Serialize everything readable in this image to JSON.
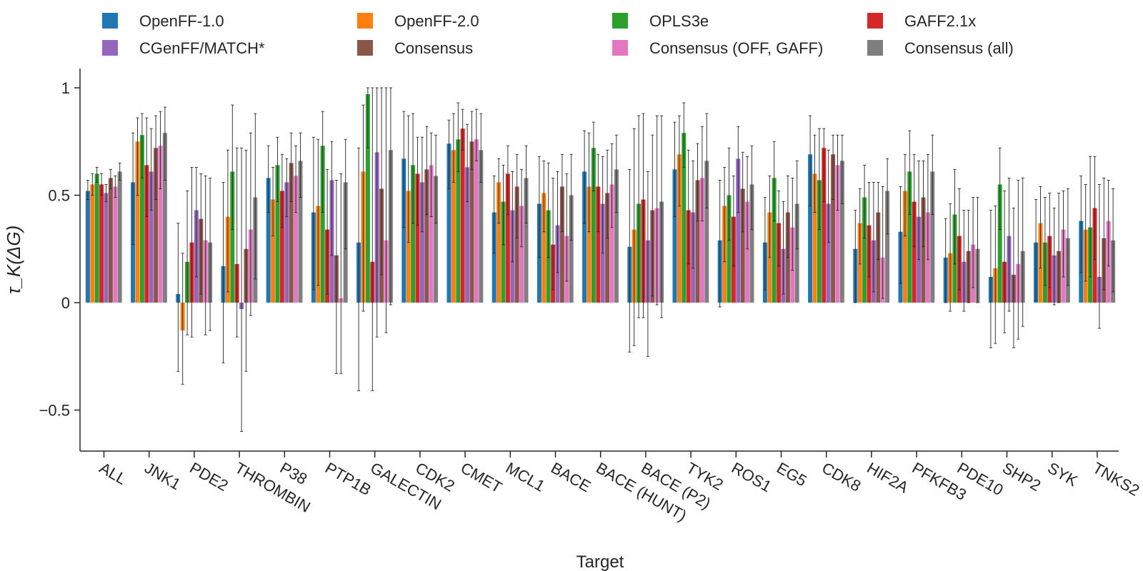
{
  "chart_data": {
    "type": "bar",
    "xlabel": "Target",
    "ylabel": "τ_K(ΔG)",
    "ylim": [
      -0.69,
      1.08
    ],
    "yticks": [
      -0.5,
      0,
      0.5,
      1
    ],
    "ytick_labels": [
      "−0.5",
      "0",
      "0.5",
      "1"
    ],
    "legend_position": "top",
    "error_bars": true,
    "categories": [
      "ALL",
      "JNK1",
      "PDE2",
      "THROMBIN",
      "P38",
      "PTP1B",
      "GALECTIN",
      "CDK2",
      "CMET",
      "MCL1",
      "BACE",
      "BACE (HUNT)",
      "BACE (P2)",
      "TYK2",
      "ROS1",
      "EG5",
      "CDK8",
      "HIF2A",
      "PFKFB3",
      "PDE10",
      "SHP2",
      "SYK",
      "TNKS2"
    ],
    "series": [
      {
        "name": "OpenFF-1.0",
        "color": "#1f77b4",
        "values": [
          0.52,
          0.56,
          0.04,
          0.17,
          0.58,
          0.42,
          0.28,
          0.67,
          0.74,
          0.42,
          0.46,
          0.61,
          0.26,
          0.62,
          0.29,
          0.28,
          0.69,
          0.25,
          0.33,
          0.21,
          0.12,
          0.28,
          0.38
        ],
        "err_low": [
          0.48,
          0.27,
          -0.32,
          -0.28,
          0.42,
          0.06,
          -0.41,
          0.35,
          0.53,
          0.23,
          0.21,
          0.37,
          -0.23,
          0.4,
          -0.02,
          0.06,
          0.45,
          0.0,
          0.09,
          0.0,
          -0.21,
          0.01,
          0.14
        ],
        "err_high": [
          0.57,
          0.79,
          0.37,
          0.56,
          0.73,
          0.77,
          0.72,
          0.89,
          0.85,
          0.59,
          0.68,
          0.8,
          0.62,
          0.84,
          0.57,
          0.49,
          0.87,
          0.43,
          0.54,
          0.39,
          0.43,
          0.48,
          0.59
        ]
      },
      {
        "name": "OpenFF-2.0",
        "color": "#ff7f0e",
        "values": [
          0.55,
          0.75,
          -0.13,
          0.4,
          0.48,
          0.45,
          0.61,
          0.52,
          0.71,
          0.56,
          0.51,
          0.54,
          0.34,
          0.69,
          0.45,
          0.42,
          0.6,
          0.37,
          0.52,
          0.23,
          0.16,
          0.37,
          0.34
        ],
        "err_low": [
          0.5,
          0.5,
          -0.38,
          0.05,
          0.31,
          0.08,
          -0.04,
          0.28,
          0.56,
          0.37,
          0.33,
          0.33,
          -0.2,
          0.45,
          0.19,
          0.21,
          0.42,
          0.18,
          0.31,
          -0.04,
          -0.19,
          0.16,
          0.1
        ],
        "err_high": [
          0.6,
          0.86,
          0.23,
          0.71,
          0.63,
          0.76,
          0.92,
          0.87,
          0.88,
          0.67,
          0.66,
          0.79,
          0.81,
          0.87,
          0.63,
          0.59,
          0.78,
          0.53,
          0.69,
          0.46,
          0.45,
          0.54,
          0.55
        ]
      },
      {
        "name": "OPLS3e",
        "color": "#2ca02c",
        "values": [
          0.6,
          0.78,
          0.19,
          0.61,
          0.64,
          0.73,
          0.97,
          0.64,
          0.76,
          0.47,
          0.43,
          0.72,
          0.46,
          0.79,
          0.5,
          0.58,
          0.57,
          0.49,
          0.61,
          0.41,
          0.55,
          0.28,
          0.35
        ],
        "err_low": [
          0.56,
          0.58,
          -0.15,
          0.34,
          0.47,
          0.42,
          0.72,
          0.37,
          0.61,
          0.27,
          0.21,
          0.52,
          -0.07,
          0.63,
          0.29,
          0.38,
          0.34,
          0.3,
          0.41,
          0.18,
          0.34,
          0.08,
          0.12
        ],
        "err_high": [
          0.63,
          0.88,
          0.52,
          0.92,
          0.77,
          0.89,
          1.0,
          0.88,
          0.93,
          0.64,
          0.65,
          0.84,
          0.87,
          0.93,
          0.72,
          0.75,
          0.81,
          0.64,
          0.8,
          0.62,
          0.72,
          0.49,
          0.68
        ]
      },
      {
        "name": "GAFF2.1x",
        "color": "#d62728",
        "values": [
          0.55,
          0.64,
          0.28,
          0.18,
          0.52,
          0.34,
          0.19,
          0.6,
          0.81,
          0.6,
          0.27,
          0.54,
          0.48,
          0.43,
          0.4,
          0.37,
          0.72,
          0.36,
          0.47,
          0.31,
          0.19,
          0.31,
          0.44
        ],
        "err_low": [
          0.5,
          0.4,
          -0.16,
          -0.16,
          0.35,
          0.04,
          -0.41,
          0.36,
          0.71,
          0.41,
          0.06,
          0.33,
          -0.07,
          0.18,
          0.17,
          0.17,
          0.47,
          0.12,
          0.26,
          0.06,
          -0.14,
          0.07,
          0.2
        ],
        "err_high": [
          0.6,
          0.86,
          0.63,
          0.72,
          0.69,
          0.62,
          1.0,
          0.77,
          0.9,
          0.73,
          0.58,
          0.69,
          0.88,
          0.71,
          0.59,
          0.52,
          0.81,
          0.56,
          0.69,
          0.53,
          0.52,
          0.51,
          0.68
        ]
      },
      {
        "name": "CGenFF/MATCH*",
        "color": "#9467bd",
        "values": [
          0.51,
          0.61,
          0.43,
          -0.03,
          0.56,
          0.57,
          0.7,
          0.56,
          0.63,
          0.43,
          0.36,
          0.46,
          0.29,
          0.42,
          0.67,
          0.25,
          0.46,
          0.29,
          0.4,
          0.19,
          0.31,
          0.22,
          0.12
        ],
        "err_low": [
          0.47,
          0.43,
          0.12,
          -0.6,
          0.4,
          0.22,
          -0.16,
          0.33,
          0.47,
          0.19,
          0.14,
          0.23,
          -0.25,
          0.16,
          0.42,
          0.04,
          0.28,
          0.05,
          0.2,
          -0.04,
          -0.04,
          -0.01,
          -0.12
        ],
        "err_high": [
          0.55,
          0.81,
          0.63,
          0.72,
          0.67,
          0.75,
          1.0,
          0.77,
          0.83,
          0.61,
          0.61,
          0.68,
          0.61,
          0.66,
          0.82,
          0.47,
          0.71,
          0.56,
          0.66,
          0.43,
          0.58,
          0.44,
          0.55
        ]
      },
      {
        "name": "Consensus",
        "color": "#8c564b",
        "values": [
          0.58,
          0.72,
          0.39,
          0.25,
          0.65,
          0.22,
          0.53,
          0.62,
          0.75,
          0.54,
          0.54,
          0.51,
          0.43,
          0.57,
          0.53,
          0.42,
          0.69,
          0.42,
          0.49,
          0.24,
          0.13,
          0.24,
          0.3
        ],
        "err_low": [
          0.53,
          0.48,
          0.04,
          -0.32,
          0.47,
          -0.33,
          0.13,
          0.41,
          0.62,
          0.3,
          0.33,
          0.3,
          0.03,
          0.38,
          0.33,
          0.21,
          0.48,
          0.2,
          0.26,
          0.0,
          -0.21,
          0.0,
          0.06
        ],
        "err_high": [
          0.62,
          0.87,
          0.6,
          0.71,
          0.79,
          0.57,
          1.0,
          0.82,
          0.89,
          0.69,
          0.69,
          0.71,
          0.78,
          0.74,
          0.7,
          0.59,
          0.78,
          0.56,
          0.66,
          0.43,
          0.44,
          0.51,
          0.58
        ]
      },
      {
        "name": "Consensus (OFF, GAFF)",
        "color": "#e377c2",
        "values": [
          0.54,
          0.73,
          0.29,
          0.34,
          0.59,
          0.02,
          0.29,
          0.64,
          0.76,
          0.45,
          0.31,
          0.55,
          0.44,
          0.58,
          0.47,
          0.35,
          0.64,
          0.21,
          0.42,
          0.27,
          0.18,
          0.34,
          0.38
        ],
        "err_low": [
          0.49,
          0.53,
          -0.15,
          -0.06,
          0.42,
          -0.33,
          -0.14,
          0.4,
          0.66,
          0.26,
          0.1,
          0.35,
          -0.01,
          0.38,
          0.25,
          0.15,
          0.43,
          0.02,
          0.2,
          0.07,
          -0.17,
          0.12,
          0.17
        ],
        "err_high": [
          0.59,
          0.89,
          0.59,
          0.79,
          0.73,
          0.6,
          1.0,
          0.79,
          0.9,
          0.62,
          0.6,
          0.74,
          0.87,
          0.82,
          0.68,
          0.58,
          0.78,
          0.54,
          0.69,
          0.49,
          0.57,
          0.52,
          0.57
        ]
      },
      {
        "name": "Consensus (all)",
        "color": "#7f7f7f",
        "values": [
          0.61,
          0.79,
          0.28,
          0.49,
          0.66,
          0.56,
          0.71,
          0.59,
          0.71,
          0.58,
          0.5,
          0.62,
          0.47,
          0.66,
          0.55,
          0.46,
          0.66,
          0.52,
          0.61,
          0.25,
          0.24,
          0.3,
          0.29
        ],
        "err_low": [
          0.57,
          0.57,
          -0.13,
          0.11,
          0.49,
          0.25,
          -0.01,
          0.37,
          0.56,
          0.37,
          0.29,
          0.42,
          -0.07,
          0.44,
          0.34,
          0.25,
          0.46,
          0.32,
          0.41,
          0.0,
          -0.11,
          0.08,
          0.05
        ],
        "err_high": [
          0.65,
          0.91,
          0.58,
          0.88,
          0.79,
          0.76,
          1.0,
          0.78,
          0.88,
          0.73,
          0.69,
          0.78,
          0.87,
          0.88,
          0.73,
          0.66,
          0.78,
          0.67,
          0.78,
          0.49,
          0.58,
          0.53,
          0.53
        ]
      }
    ]
  }
}
